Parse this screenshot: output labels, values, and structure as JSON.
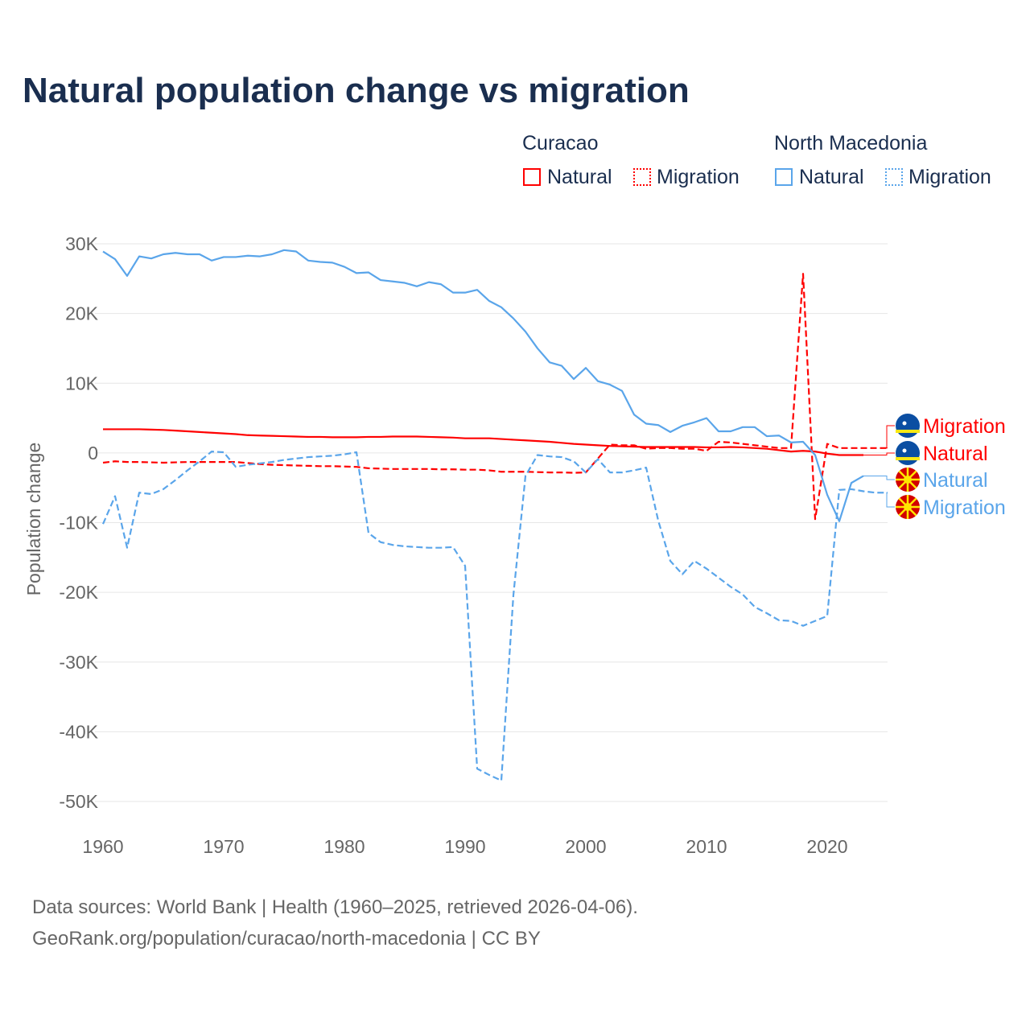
{
  "title": "Natural population change vs migration",
  "legend": {
    "groups": [
      {
        "country": "Curacao",
        "color": "#ff0000",
        "natural": "Natural",
        "migration": "Migration"
      },
      {
        "country": "North Macedonia",
        "color": "#5aa5ea",
        "natural": "Natural",
        "migration": "Migration"
      }
    ]
  },
  "source": {
    "line1": "Data sources: World Bank | Health (1960–2025, retrieved 2026-04-06).",
    "line2": "GeoRank.org/population/curacao/north-macedonia | CC BY"
  },
  "chart_data": {
    "type": "line",
    "title": "Natural population change vs migration",
    "xlabel": "",
    "ylabel": "Population change",
    "xlim": [
      1960,
      2025
    ],
    "ylim": [
      -50000,
      30000
    ],
    "xticks": [
      1960,
      1970,
      1980,
      1990,
      2000,
      2010,
      2020
    ],
    "xtick_labels": [
      "1960",
      "1970",
      "1980",
      "1990",
      "2000",
      "2010",
      "2020"
    ],
    "yticks": [
      30000,
      20000,
      10000,
      0,
      -10000,
      -20000,
      -30000,
      -40000,
      -50000
    ],
    "ytick_labels": [
      "30K",
      "20K",
      "10K",
      "0",
      "-10K",
      "-20K",
      "-30K",
      "-40K",
      "-50K"
    ],
    "grid": true,
    "series": [
      {
        "name": "Curacao Natural",
        "label": "Natural",
        "color": "#ff0000",
        "dash": false,
        "start": 1960,
        "values": [
          3.4,
          3.4,
          3.4,
          3.4,
          3.35,
          3.3,
          3.2,
          3.1,
          3.0,
          2.9,
          2.8,
          2.7,
          2.55,
          2.5,
          2.45,
          2.4,
          2.35,
          2.3,
          2.3,
          2.25,
          2.25,
          2.25,
          2.3,
          2.3,
          2.35,
          2.35,
          2.35,
          2.3,
          2.25,
          2.2,
          2.1,
          2.1,
          2.1,
          2.0,
          1.9,
          1.8,
          1.7,
          1.6,
          1.45,
          1.3,
          1.2,
          1.1,
          1.0,
          0.95,
          0.9,
          0.85,
          0.85,
          0.85,
          0.85,
          0.85,
          0.8,
          0.8,
          0.85,
          0.8,
          0.7,
          0.6,
          0.4,
          0.2,
          0.3,
          0.2,
          -0.1,
          -0.3,
          -0.3,
          -0.3
        ]
      },
      {
        "name": "Curacao Migration",
        "label": "Migration",
        "color": "#ff0000",
        "dash": true,
        "start": 1960,
        "values": [
          -1.4,
          -1.2,
          -1.3,
          -1.3,
          -1.35,
          -1.4,
          -1.35,
          -1.3,
          -1.3,
          -1.3,
          -1.3,
          -1.3,
          -1.45,
          -1.6,
          -1.7,
          -1.75,
          -1.8,
          -1.85,
          -1.9,
          -1.9,
          -1.95,
          -2.0,
          -2.2,
          -2.25,
          -2.3,
          -2.3,
          -2.3,
          -2.3,
          -2.35,
          -2.35,
          -2.4,
          -2.4,
          -2.5,
          -2.7,
          -2.7,
          -2.7,
          -2.75,
          -2.8,
          -2.8,
          -2.85,
          -2.8,
          -0.8,
          1.2,
          1.1,
          1.1,
          0.6,
          0.7,
          0.7,
          0.6,
          0.6,
          0.3,
          1.6,
          1.5,
          1.3,
          1.1,
          0.9,
          0.7,
          0.7,
          25.7,
          -9.5,
          1.3,
          0.7,
          0.7,
          0.7,
          0.7,
          0.7
        ]
      },
      {
        "name": "North Macedonia Natural",
        "label": "Natural",
        "color": "#5aa5ea",
        "dash": false,
        "start": 1960,
        "values": [
          28.9,
          27.8,
          25.4,
          28.2,
          27.9,
          28.5,
          28.7,
          28.5,
          28.5,
          27.6,
          28.1,
          28.1,
          28.3,
          28.2,
          28.5,
          29.1,
          28.9,
          27.6,
          27.4,
          27.3,
          26.7,
          25.8,
          25.9,
          24.8,
          24.6,
          24.4,
          23.9,
          24.5,
          24.2,
          23.0,
          23.0,
          23.4,
          21.8,
          20.9,
          19.3,
          17.4,
          15.0,
          13.0,
          12.5,
          10.6,
          12.2,
          10.3,
          9.8,
          8.9,
          5.5,
          4.2,
          4.0,
          3.0,
          3.9,
          4.4,
          5.0,
          3.1,
          3.1,
          3.7,
          3.7,
          2.4,
          2.5,
          1.5,
          1.6,
          -0.3,
          -6.0,
          -9.8,
          -4.3,
          -3.3
        ]
      },
      {
        "name": "North Macedonia Migration",
        "label": "Migration",
        "color": "#5aa5ea",
        "dash": true,
        "start": 1960,
        "values": [
          -10.2,
          -6.2,
          -13.6,
          -5.7,
          -5.9,
          -5.2,
          -3.9,
          -2.5,
          -1.2,
          0.2,
          0.1,
          -2.0,
          -1.7,
          -1.5,
          -1.3,
          -1.0,
          -0.8,
          -0.6,
          -0.5,
          -0.4,
          -0.2,
          0.1,
          -11.5,
          -12.8,
          -13.2,
          -13.4,
          -13.5,
          -13.6,
          -13.6,
          -13.5,
          -16.2,
          -45.3,
          -46.2,
          -47.0,
          -20.4,
          -3.3,
          -0.3,
          -0.5,
          -0.6,
          -1.2,
          -2.8,
          -0.9,
          -2.8,
          -2.8,
          -2.5,
          -2.1,
          -9.7,
          -15.5,
          -17.4,
          -15.5,
          -16.6,
          -17.9,
          -19.2,
          -20.3,
          -22.1,
          -23.0,
          -24.0,
          -24.1,
          -24.8,
          -24.1,
          -23.4,
          -5.3,
          -5.2,
          -5.5,
          -5.7,
          -5.7
        ]
      }
    ],
    "value_unit": "thousands",
    "end_label_order": [
      1,
      0,
      2,
      3
    ]
  }
}
